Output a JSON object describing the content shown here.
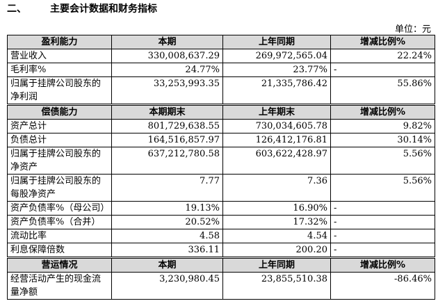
{
  "header": {
    "section": "二、",
    "title": "主要会计数据和财务指标"
  },
  "unit": "单位：元",
  "tables": [
    {
      "header": [
        "盈利能力",
        "本期",
        "上年同期",
        "增减比例%"
      ],
      "rows": [
        [
          "营业收入",
          "330,008,637.29",
          "269,972,565.04",
          "22.24%"
        ],
        [
          "毛利率%",
          "24.77%",
          "23.77%",
          "-"
        ],
        [
          "归属于挂牌公司股东的净利润",
          "33,253,993.35",
          "21,335,786.42",
          "55.86%"
        ]
      ]
    },
    {
      "header": [
        "偿债能力",
        "本期期末",
        "上年期末",
        "增减比例%"
      ],
      "rows": [
        [
          "资产总计",
          "801,729,638.55",
          "730,034,605.78",
          "9.82%"
        ],
        [
          "负债总计",
          "164,516,857.97",
          "126,412,176.81",
          "30.14%"
        ],
        [
          "归属于挂牌公司股东的净资产",
          "637,212,780.58",
          "603,622,428.97",
          "5.56%"
        ],
        [
          "归属于挂牌公司股东的每股净资产",
          "7.77",
          "7.36",
          "5.56%"
        ],
        [
          "资产负债率%（母公司）",
          "19.13%",
          "16.90%",
          "-"
        ],
        [
          "资产负债率%（合并）",
          "20.52%",
          "17.32%",
          "-"
        ],
        [
          "流动比率",
          "4.58",
          "4.54",
          "-"
        ],
        [
          "利息保障倍数",
          "336.11",
          "200.20",
          "-"
        ]
      ]
    },
    {
      "header": [
        "营运情况",
        "本期",
        "上年同期",
        "增减比例%"
      ],
      "rows": [
        [
          "经营活动产生的现金流量净额",
          "3,230,980.45",
          "23,855,510.38",
          "-86.46%"
        ]
      ]
    }
  ]
}
